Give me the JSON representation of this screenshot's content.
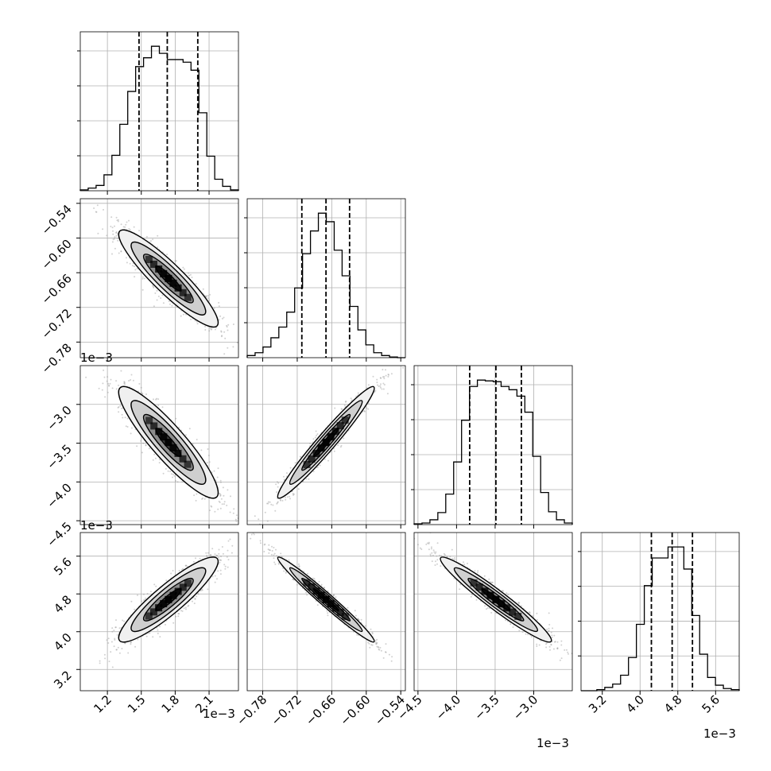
{
  "chart_data": {
    "type": "corner",
    "n_params": 4,
    "grid": true,
    "quantile_lines": "dashed",
    "colors": {
      "line": "#000000",
      "grid": "#b0b0b0",
      "scatter": "#9a9a9a"
    },
    "offset_texts": {
      "row1": "1e−3",
      "row2": "1e−3",
      "col0": "1e−3",
      "col2": "1e−3",
      "col3": "1e−3"
    },
    "params": [
      {
        "range": [
          0.96,
          2.36
        ],
        "ticks": [
          1.2,
          1.5,
          1.8,
          2.1
        ],
        "tick_labels": [
          "1.2",
          "1.5",
          "1.8",
          "2.1"
        ],
        "quantiles": [
          1.48,
          1.73,
          2.0
        ]
      },
      {
        "range": [
          -0.807,
          -0.532
        ],
        "ticks": [
          -0.78,
          -0.72,
          -0.66,
          -0.6,
          -0.54
        ],
        "tick_labels": [
          "−0.78",
          "−0.72",
          "−0.66",
          "−0.60",
          "−0.54"
        ],
        "quantiles": [
          -0.712,
          -0.67,
          -0.629
        ]
      },
      {
        "range": [
          -4.55,
          -2.5
        ],
        "ticks": [
          -4.5,
          -4.0,
          -3.5,
          -3.0
        ],
        "tick_labels": [
          "−4.5",
          "−4.0",
          "−3.5",
          "−3.0"
        ],
        "quantiles": [
          -3.83,
          -3.49,
          -3.16
        ]
      },
      {
        "range": [
          2.75,
          6.1
        ],
        "ticks": [
          3.2,
          4.0,
          4.8,
          5.6
        ],
        "tick_labels": [
          "3.2",
          "4.0",
          "4.8",
          "5.6"
        ],
        "quantiles": [
          4.24,
          4.68,
          5.11
        ]
      }
    ],
    "histograms": [
      {
        "bins": [
          0.96,
          1.03,
          1.1,
          1.17,
          1.24,
          1.31,
          1.38,
          1.45,
          1.52,
          1.59,
          1.66,
          1.73,
          1.8,
          1.87,
          1.94,
          2.01,
          2.08,
          2.15,
          2.22,
          2.29,
          2.36
        ],
        "counts": [
          1,
          3,
          6,
          18,
          40,
          75,
          112,
          140,
          150,
          163,
          155,
          148,
          148,
          145,
          136,
          88,
          39,
          13,
          5,
          1
        ]
      },
      {
        "bins": [
          -0.807,
          -0.79325,
          -0.7795,
          -0.76575,
          -0.752,
          -0.73825,
          -0.7245,
          -0.71075,
          -0.697,
          -0.68325,
          -0.6695,
          -0.65575,
          -0.642,
          -0.62825,
          -0.6145,
          -0.60075,
          -0.587,
          -0.57325,
          -0.5595,
          -0.54575,
          -0.532
        ],
        "counts": [
          3,
          7,
          15,
          28,
          43,
          64,
          98,
          146,
          178,
          203,
          191,
          151,
          115,
          72,
          39,
          18,
          7,
          3,
          1,
          0
        ]
      },
      {
        "bins": [
          -4.55,
          -4.4475,
          -4.345,
          -4.2425,
          -4.14,
          -4.0375,
          -3.935,
          -3.8325,
          -3.73,
          -3.6275,
          -3.525,
          -3.4225,
          -3.32,
          -3.2175,
          -3.115,
          -3.0125,
          -2.91,
          -2.8075,
          -2.705,
          -2.6025,
          -2.5
        ],
        "counts": [
          1,
          2,
          6,
          15,
          38,
          78,
          130,
          172,
          180,
          179,
          178,
          172,
          168,
          160,
          140,
          85,
          40,
          16,
          6,
          2
        ]
      },
      {
        "bins": [
          2.75,
          2.9175,
          3.085,
          3.2525,
          3.42,
          3.5875,
          3.755,
          3.9225,
          4.09,
          4.2575,
          4.425,
          4.5925,
          4.76,
          4.9275,
          5.095,
          5.2625,
          5.43,
          5.5975,
          5.765,
          5.9325,
          6.1
        ],
        "counts": [
          0,
          0,
          1,
          3,
          6,
          14,
          30,
          60,
          95,
          120,
          120,
          130,
          130,
          110,
          68,
          33,
          12,
          5,
          2,
          1
        ]
      }
    ],
    "pairs": [
      {
        "x": 0,
        "y": 1,
        "mean": [
          1.74,
          -0.67
        ],
        "sd": [
          0.22,
          0.042
        ],
        "corr": -0.91
      },
      {
        "x": 0,
        "y": 2,
        "mean": [
          1.74,
          -3.49
        ],
        "sd": [
          0.22,
          0.36
        ],
        "corr": -0.9
      },
      {
        "x": 1,
        "y": 2,
        "mean": [
          -0.67,
          -3.49
        ],
        "sd": [
          0.042,
          0.36
        ],
        "corr": 0.97
      },
      {
        "x": 0,
        "y": 3,
        "mean": [
          1.74,
          4.68
        ],
        "sd": [
          0.22,
          0.45
        ],
        "corr": 0.9
      },
      {
        "x": 1,
        "y": 3,
        "mean": [
          -0.67,
          4.68
        ],
        "sd": [
          0.042,
          0.45
        ],
        "corr": -0.98
      },
      {
        "x": 2,
        "y": 3,
        "mean": [
          -3.49,
          4.68
        ],
        "sd": [
          0.36,
          0.45
        ],
        "corr": -0.96
      }
    ]
  }
}
